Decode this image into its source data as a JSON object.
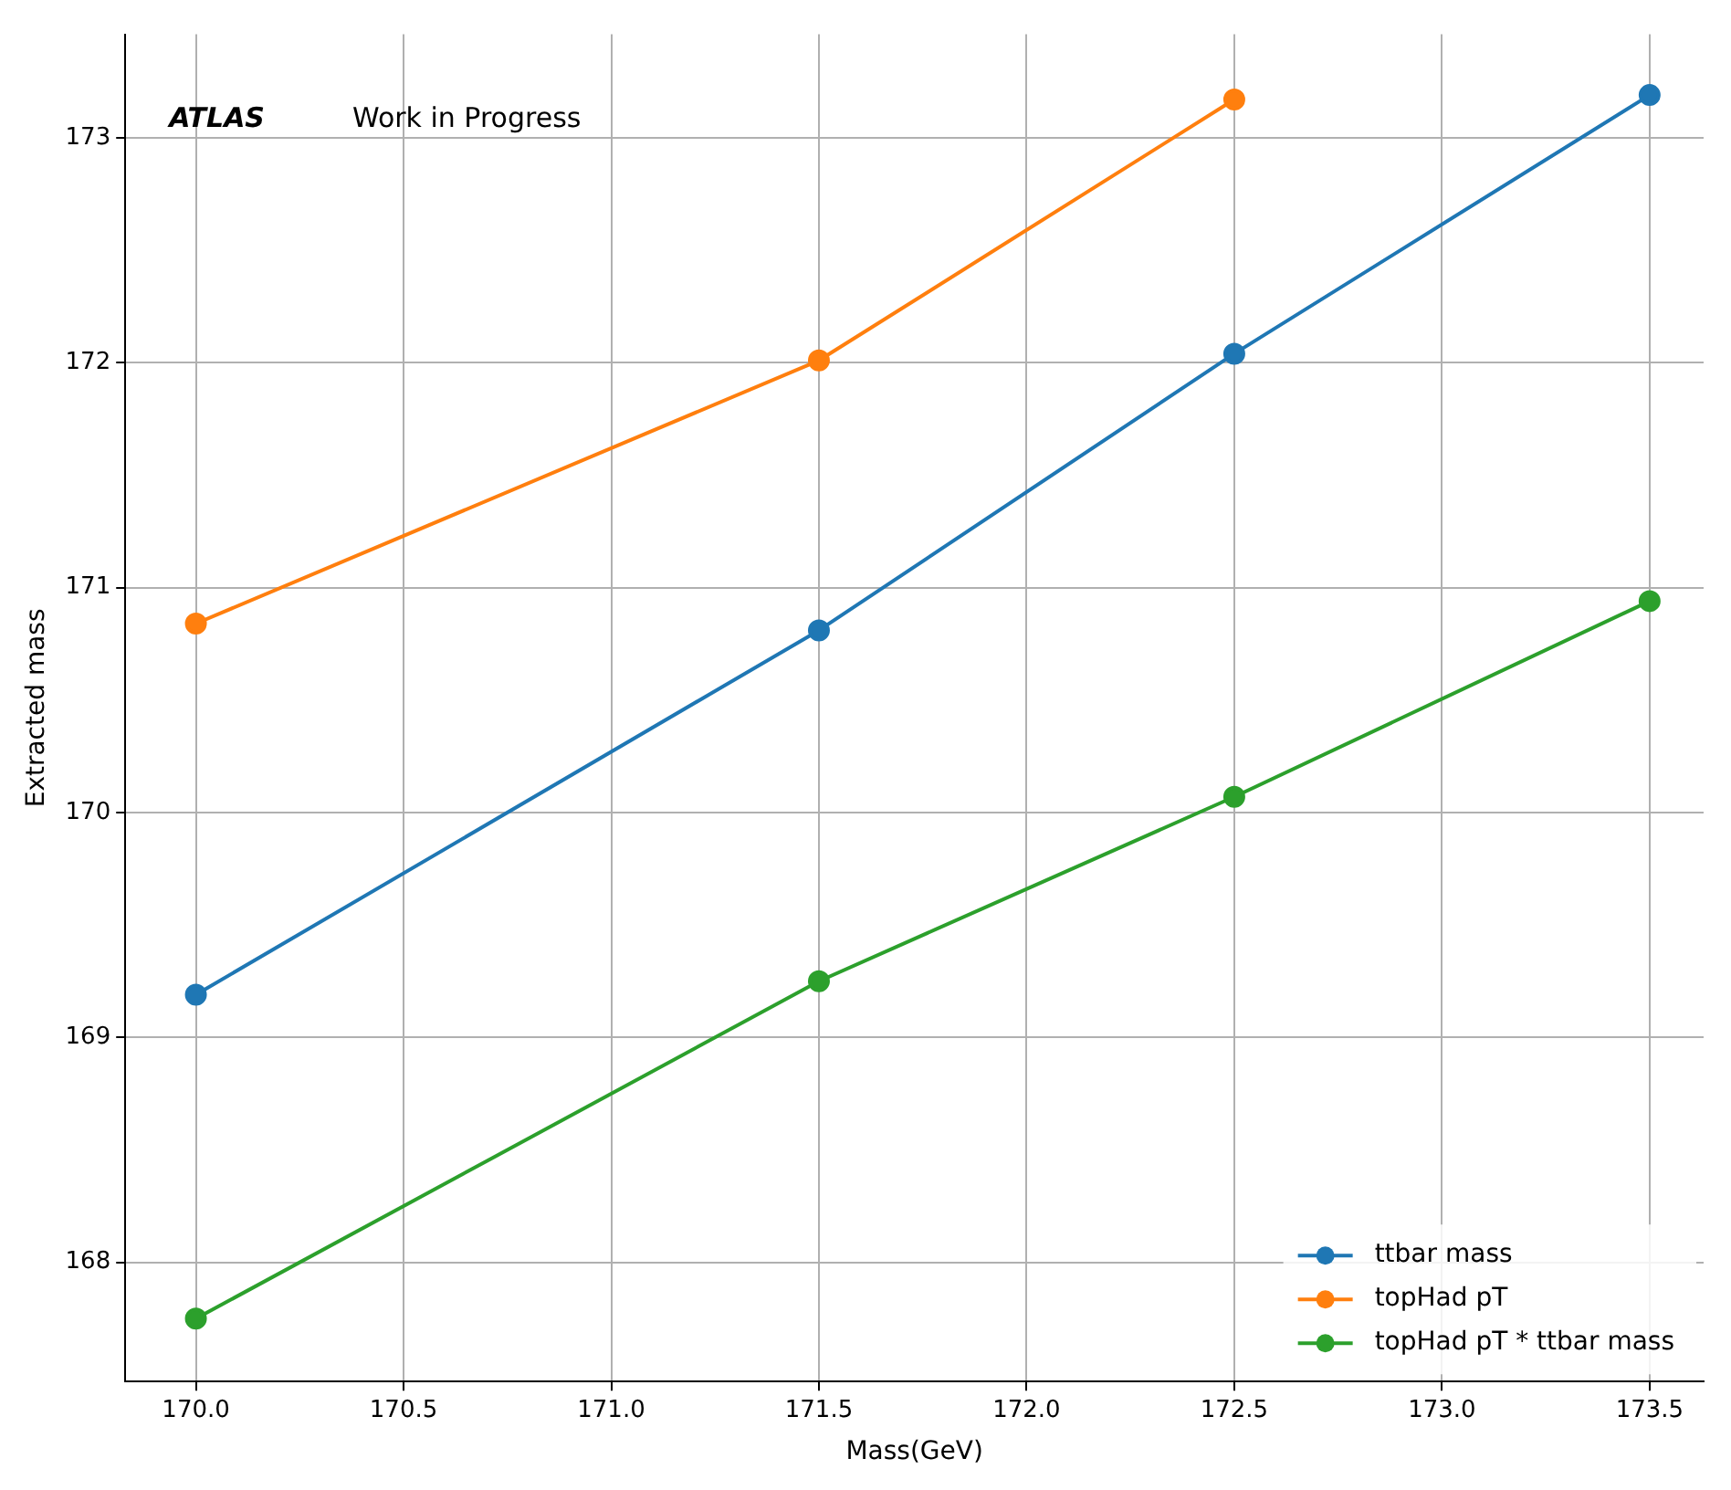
{
  "chart_data": {
    "type": "line",
    "xlabel": "Mass(GeV)",
    "ylabel": "Extracted mass",
    "annotations": [
      "ATLAS",
      "Work in Progress"
    ],
    "x": [
      170,
      171.5,
      172.5,
      173.5
    ],
    "series": [
      {
        "name": "ttbar mass",
        "color": "#1f77b4",
        "values": [
          169.19,
          170.81,
          172.04,
          173.19
        ]
      },
      {
        "name": "topHad pT",
        "color": "#ff7f0e",
        "x": [
          170,
          171.5,
          172.5
        ],
        "values": [
          170.84,
          172.01,
          173.17
        ]
      },
      {
        "name": "topHad pT * ttbar mass",
        "color": "#2ca02c",
        "values": [
          167.75,
          169.25,
          170.07,
          170.94
        ]
      }
    ],
    "xlim": [
      169.83,
      173.63
    ],
    "ylim": [
      167.47,
      173.46
    ],
    "xticks": [
      {
        "value": 170,
        "label": "170.0"
      },
      {
        "value": 170.5,
        "label": "170.5"
      },
      {
        "value": 171,
        "label": "171.0"
      },
      {
        "value": 171.5,
        "label": "171.5"
      },
      {
        "value": 172,
        "label": "172.0"
      },
      {
        "value": 172.5,
        "label": "172.5"
      },
      {
        "value": 173,
        "label": "173.0"
      },
      {
        "value": 173.5,
        "label": "173.5"
      }
    ],
    "yticks": [
      168,
      169,
      170,
      171,
      172,
      173
    ],
    "grid": true,
    "legend": "bottom right",
    "marker": "circle",
    "line_style": "solid"
  }
}
